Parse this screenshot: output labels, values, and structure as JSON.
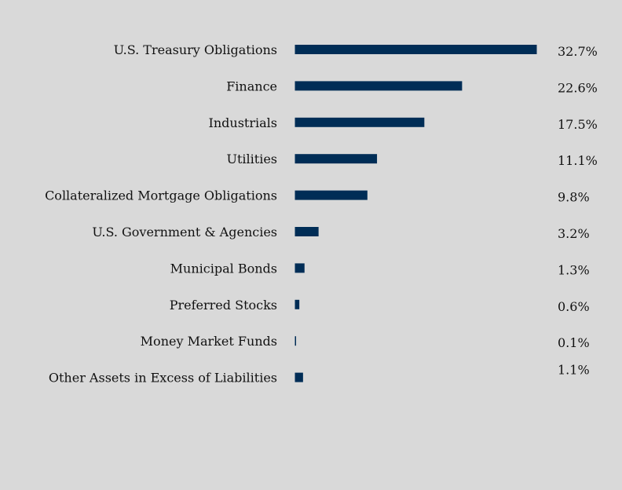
{
  "chart_data": {
    "type": "bar",
    "orientation": "horizontal",
    "title": "",
    "xlabel": "",
    "ylabel": "",
    "categories": [
      "U.S. Treasury Obligations",
      "Finance",
      "Industrials",
      "Utilities",
      "Collateralized Mortgage Obligations",
      "U.S. Government & Agencies",
      "Municipal Bonds",
      "Preferred Stocks",
      "Money Market Funds",
      "Other Assets in Excess of Liabilities"
    ],
    "values": [
      32.7,
      22.6,
      17.5,
      11.1,
      9.8,
      3.2,
      1.3,
      0.6,
      0.1,
      1.1
    ],
    "value_labels": [
      "32.7%",
      "22.6%",
      "17.5%",
      "11.1%",
      "9.8%",
      "3.2%",
      "1.3%",
      "0.6%",
      "0.1%",
      "1.1%"
    ],
    "unit": "%",
    "xlim": [
      0,
      32.7
    ],
    "grid": false,
    "legend": "none",
    "colors": {
      "background": "#d9d9d9",
      "bar": "#002d56",
      "text": "#111111"
    }
  }
}
